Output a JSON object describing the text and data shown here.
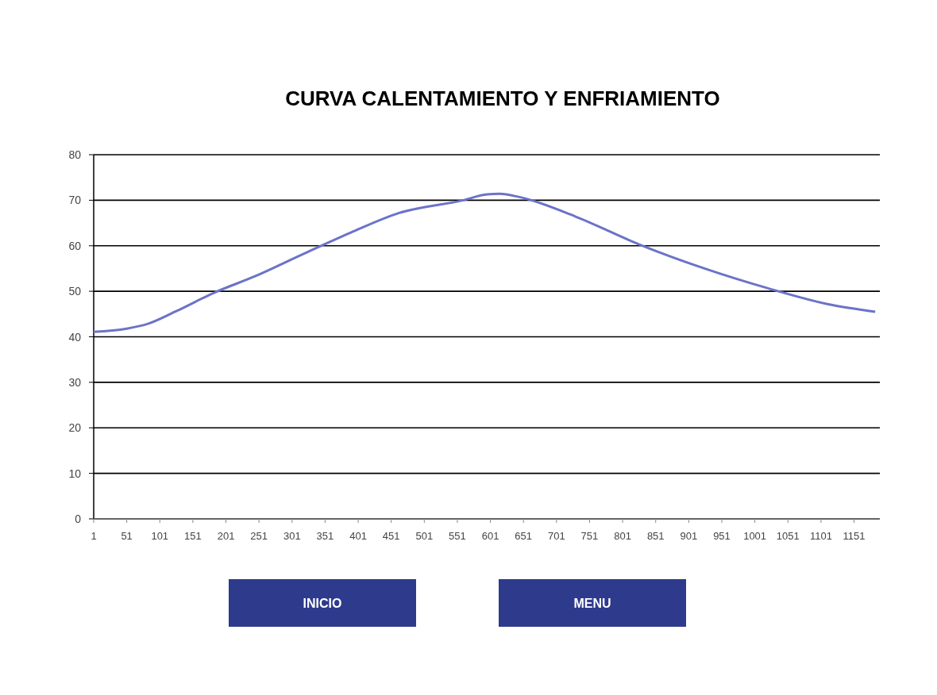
{
  "chart_data": {
    "type": "line",
    "title": "CURVA CALENTAMIENTO Y ENFRIAMIENTO",
    "x": [
      1,
      51,
      82,
      124,
      185,
      245,
      318,
      390,
      463,
      560,
      596,
      615,
      645,
      730,
      826,
      923,
      1020,
      1117,
      1183
    ],
    "series": [
      {
        "color": "#6b73c8",
        "values": [
          41.1,
          41.8,
          42.8,
          45.5,
          49.8,
          53.3,
          58.2,
          62.9,
          67.2,
          70,
          71.3,
          71.4,
          70.7,
          66.4,
          60.3,
          55.1,
          50.7,
          47,
          45.5
        ]
      }
    ],
    "xlim": [
      1,
      1190
    ],
    "xticks": [
      1,
      51,
      101,
      151,
      201,
      251,
      301,
      351,
      401,
      451,
      501,
      551,
      601,
      651,
      701,
      751,
      801,
      851,
      901,
      951,
      1001,
      1051,
      1101,
      1151
    ],
    "ylim": [
      0,
      80
    ],
    "yticks": [
      0,
      10,
      20,
      30,
      40,
      50,
      60,
      70,
      80
    ],
    "grid": "y",
    "marker": "none",
    "line_style": "solid",
    "annotations": [
      "INICIO",
      "MENU"
    ]
  }
}
